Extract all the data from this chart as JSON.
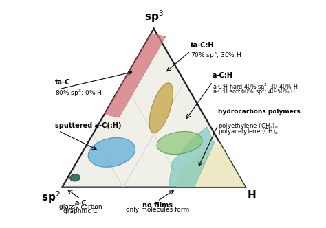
{
  "bg_color": "#ffffff",
  "tri_face": "#f0efe8",
  "tri_edge": "#1a1a1a",
  "grid_color": "#cccccc",
  "vertex_labels": {
    "sp3": "sp$^3$",
    "sp2": "sp$^2$",
    "H": "H"
  },
  "regions": {
    "no_films": {
      "color": "#ede9c0",
      "alpha": 0.9
    },
    "hydrocarbons": {
      "color": "#5bbdb5",
      "alpha": 0.55
    },
    "taC_stripe": {
      "color": "#d4707a",
      "alpha": 0.72
    },
    "sputtered": {
      "color": "#5aabda",
      "alpha": 0.72
    },
    "aCH_hard": {
      "color": "#c9a84c",
      "alpha": 0.78
    },
    "aCH_soft": {
      "color": "#8ec87a",
      "alpha": 0.72
    },
    "graphitic": {
      "color": "#2d6b5a",
      "alpha": 0.92
    }
  },
  "annotations": {
    "taC": {
      "text": "ta-C",
      "sub": "80% sp$^3$; 0% H"
    },
    "taCH": {
      "text": "ta-C:H",
      "sub": "70% sp$^3$; 30% H"
    },
    "aCH": {
      "text": "a-C:H",
      "sub1": "a-C:H hard 40% sp$^3$; 30-40% H",
      "sub2": "a-C:H soft 60% sp$^3$; 40-50% H"
    },
    "sput": {
      "text": "sputtered a-C(:H)"
    },
    "hydro": {
      "text1": "hydrocarbons polymers",
      "text2": "polyethylene (CH$_2$)$_n$",
      "text3": "polyacetylene (CH)$_n$"
    },
    "nofilms": {
      "text1": "no films",
      "text2": "only molecules form"
    },
    "aC": {
      "text1": "a-C",
      "text2": "glassy carbon",
      "text3": "graphitic C"
    }
  }
}
